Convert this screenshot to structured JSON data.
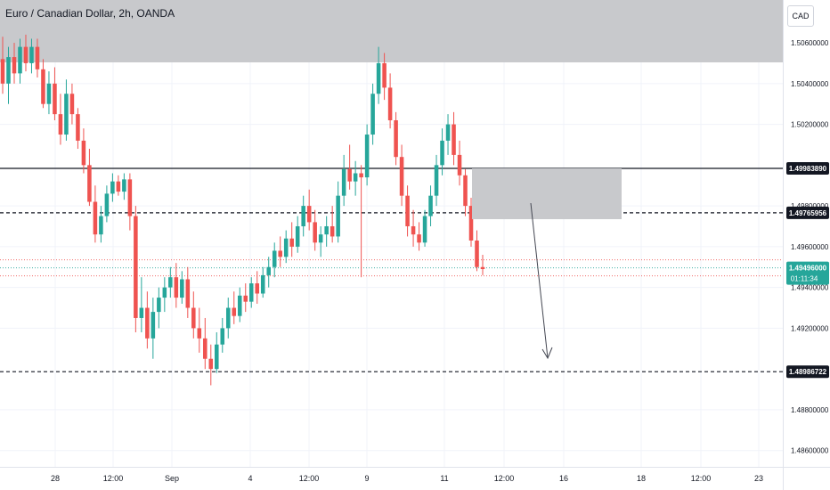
{
  "header": {
    "title": "Euro / Canadian Dollar, 2h, OANDA",
    "currency": "CAD"
  },
  "chart_data": {
    "type": "candlestick",
    "ylim": [
      1.4852,
      1.5081
    ],
    "price_ticks": [
      "1.50600000",
      "1.50400000",
      "1.50200000",
      "1.49800000",
      "1.49600000",
      "1.49400000",
      "1.49200000",
      "1.48800000",
      "1.48600000"
    ],
    "time_ticks": [
      "28",
      "12:00",
      "Sep",
      "4",
      "12:00",
      "9",
      "11",
      "12:00",
      "16",
      "18",
      "12:00",
      "23"
    ],
    "labels": {
      "upper_level": "1.49983890",
      "zone_level": "1.49765956",
      "last_price": "1.49496000",
      "countdown": "01:11:34",
      "target_level": "1.48986722"
    },
    "colors": {
      "up": "#26a69a",
      "down": "#ef5350",
      "zone": "#c8c9cc",
      "axis_text": "#131722"
    },
    "candles": [
      [
        1.5052,
        1.5063,
        1.5035,
        1.504
      ],
      [
        1.504,
        1.5058,
        1.503,
        1.5053
      ],
      [
        1.5053,
        1.506,
        1.504,
        1.5045
      ],
      [
        1.5045,
        1.5062,
        1.504,
        1.5058
      ],
      [
        1.5058,
        1.5064,
        1.5046,
        1.505
      ],
      [
        1.505,
        1.5062,
        1.5045,
        1.5058
      ],
      [
        1.5058,
        1.5062,
        1.5043,
        1.5047
      ],
      [
        1.5047,
        1.5052,
        1.5028,
        1.503
      ],
      [
        1.503,
        1.5046,
        1.5025,
        1.504
      ],
      [
        1.504,
        1.5048,
        1.5022,
        1.5025
      ],
      [
        1.5025,
        1.5035,
        1.501,
        1.5015
      ],
      [
        1.5015,
        1.5042,
        1.5012,
        1.5035
      ],
      [
        1.5035,
        1.504,
        1.502,
        1.5025
      ],
      [
        1.5025,
        1.5028,
        1.5008,
        1.5012
      ],
      [
        1.5012,
        1.5018,
        1.4996,
        1.5
      ],
      [
        1.5,
        1.5008,
        1.498,
        1.4982
      ],
      [
        1.4982,
        1.499,
        1.4962,
        1.4966
      ],
      [
        1.4966,
        1.498,
        1.4962,
        1.4975
      ],
      [
        1.4975,
        1.499,
        1.4972,
        1.4986
      ],
      [
        1.4986,
        1.4996,
        1.4982,
        1.4992
      ],
      [
        1.4992,
        1.4995,
        1.4985,
        1.4987
      ],
      [
        1.4987,
        1.4996,
        1.4983,
        1.4993
      ],
      [
        1.4993,
        1.4996,
        1.4968,
        1.4975
      ],
      [
        1.4975,
        1.498,
        1.4918,
        1.4925
      ],
      [
        1.4925,
        1.4945,
        1.4918,
        1.493
      ],
      [
        1.493,
        1.4938,
        1.491,
        1.4915
      ],
      [
        1.4915,
        1.4935,
        1.4905,
        1.4928
      ],
      [
        1.4928,
        1.494,
        1.492,
        1.4935
      ],
      [
        1.4935,
        1.4945,
        1.4928,
        1.494
      ],
      [
        1.494,
        1.495,
        1.4935,
        1.4945
      ],
      [
        1.4945,
        1.4952,
        1.493,
        1.4935
      ],
      [
        1.4935,
        1.4948,
        1.4932,
        1.4944
      ],
      [
        1.4944,
        1.495,
        1.4925,
        1.493
      ],
      [
        1.493,
        1.4938,
        1.4915,
        1.492
      ],
      [
        1.492,
        1.493,
        1.4908,
        1.4915
      ],
      [
        1.4915,
        1.4925,
        1.49,
        1.4905
      ],
      [
        1.4905,
        1.4912,
        1.4892,
        1.49
      ],
      [
        1.49,
        1.4918,
        1.4898,
        1.4912
      ],
      [
        1.4912,
        1.4925,
        1.4908,
        1.492
      ],
      [
        1.492,
        1.4935,
        1.4915,
        1.493
      ],
      [
        1.493,
        1.4938,
        1.4922,
        1.4926
      ],
      [
        1.4926,
        1.494,
        1.4923,
        1.4936
      ],
      [
        1.4936,
        1.4942,
        1.4928,
        1.4933
      ],
      [
        1.4933,
        1.4945,
        1.493,
        1.4942
      ],
      [
        1.4942,
        1.4948,
        1.4932,
        1.4937
      ],
      [
        1.4937,
        1.495,
        1.4935,
        1.4946
      ],
      [
        1.4946,
        1.4955,
        1.494,
        1.495
      ],
      [
        1.495,
        1.4962,
        1.4945,
        1.4958
      ],
      [
        1.4958,
        1.4965,
        1.495,
        1.4955
      ],
      [
        1.4955,
        1.4968,
        1.4952,
        1.4964
      ],
      [
        1.4964,
        1.4972,
        1.4955,
        1.496
      ],
      [
        1.496,
        1.4975,
        1.4957,
        1.497
      ],
      [
        1.497,
        1.4985,
        1.4965,
        1.498
      ],
      [
        1.498,
        1.4988,
        1.4968,
        1.4972
      ],
      [
        1.4972,
        1.4978,
        1.4958,
        1.4962
      ],
      [
        1.4962,
        1.497,
        1.4955,
        1.4966
      ],
      [
        1.4966,
        1.4975,
        1.496,
        1.497
      ],
      [
        1.497,
        1.498,
        1.4962,
        1.4965
      ],
      [
        1.4965,
        1.4992,
        1.4962,
        1.4985
      ],
      [
        1.4985,
        1.5005,
        1.498,
        1.4998
      ],
      [
        1.4998,
        1.501,
        1.4988,
        1.4992
      ],
      [
        1.4992,
        1.5002,
        1.4985,
        1.4996
      ],
      [
        1.4996,
        1.5,
        1.4945,
        1.4994
      ],
      [
        1.4994,
        1.502,
        1.499,
        1.5015
      ],
      [
        1.5015,
        1.504,
        1.501,
        1.5035
      ],
      [
        1.5035,
        1.5058,
        1.503,
        1.505
      ],
      [
        1.505,
        1.5055,
        1.5032,
        1.5038
      ],
      [
        1.5038,
        1.5045,
        1.5018,
        1.5022
      ],
      [
        1.5022,
        1.5026,
        1.5,
        1.5004
      ],
      [
        1.5004,
        1.501,
        1.498,
        1.4985
      ],
      [
        1.4985,
        1.499,
        1.4965,
        1.497
      ],
      [
        1.497,
        1.4978,
        1.496,
        1.4966
      ],
      [
        1.4966,
        1.4972,
        1.4958,
        1.4962
      ],
      [
        1.4962,
        1.4978,
        1.496,
        1.4975
      ],
      [
        1.4975,
        1.499,
        1.497,
        1.4985
      ],
      [
        1.4985,
        1.5005,
        1.498,
        1.5
      ],
      [
        1.5,
        1.5018,
        1.4995,
        1.5012
      ],
      [
        1.5012,
        1.5025,
        1.5005,
        1.502
      ],
      [
        1.502,
        1.5026,
        1.5,
        1.5005
      ],
      [
        1.5005,
        1.5012,
        1.499,
        1.4995
      ],
      [
        1.4995,
        1.4998,
        1.4975,
        1.498
      ],
      [
        1.498,
        1.4984,
        1.496,
        1.4963
      ],
      [
        1.4963,
        1.4968,
        1.4948,
        1.495
      ],
      [
        1.495,
        1.4956,
        1.4946,
        1.4949
      ]
    ]
  }
}
